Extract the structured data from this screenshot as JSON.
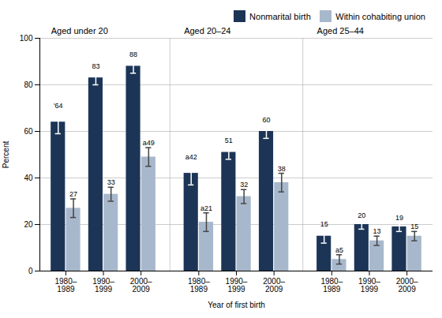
{
  "chart_data": {
    "type": "bar",
    "xlabel": "Year of first birth",
    "ylabel": "Percent",
    "categories": [
      "1980–\n1989",
      "1990–\n1999",
      "2000–\n2009",
      "1980–\n1989",
      "1990–\n1999",
      "2000–\n2009",
      "1980–\n1989",
      "1990–\n1999",
      "2000–\n2009"
    ],
    "groups": [
      "Aged under 20",
      "Aged 20–24",
      "Aged 25–44"
    ],
    "series": [
      {
        "name": "Nonmarital birth",
        "color": "#1c3557",
        "values": [
          64,
          83,
          88,
          42,
          51,
          60,
          15,
          20,
          19
        ],
        "errors": [
          5,
          3,
          3,
          5,
          3,
          3,
          3,
          2,
          2
        ],
        "value_labels": [
          "'64",
          "83",
          "88",
          "a42",
          "51",
          "60",
          "15",
          "20",
          "19"
        ]
      },
      {
        "name": "Within cohabiting union",
        "color": "#a8b8cc",
        "values": [
          27,
          33,
          49,
          21,
          32,
          38,
          5,
          13,
          15
        ],
        "errors": [
          4,
          3,
          4,
          4,
          3,
          4,
          2,
          2,
          2
        ],
        "value_labels": [
          "27",
          "33",
          "a49",
          "a21",
          "32",
          "38",
          "a5",
          "13",
          "15"
        ]
      }
    ],
    "ylim": [
      0,
      100
    ],
    "yticks": [
      0,
      20,
      40,
      60,
      80,
      100
    ],
    "grid": true,
    "legend": "upper right",
    "data_labels": true
  }
}
